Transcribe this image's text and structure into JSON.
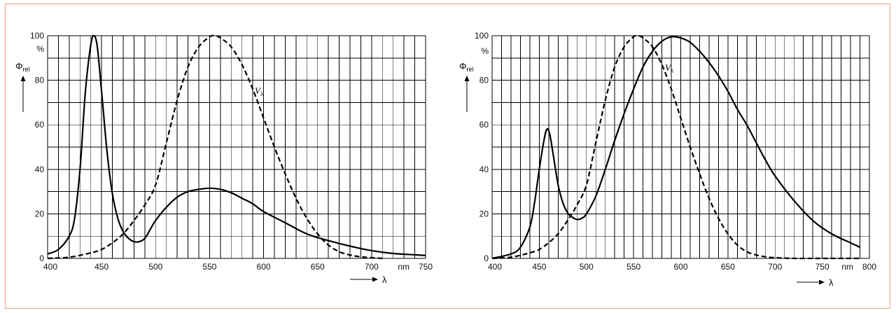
{
  "chart_data": [
    {
      "type": "line",
      "xlim": [
        400,
        750
      ],
      "ylim": [
        0,
        100
      ],
      "x_ticks": [
        "400",
        "450",
        "500",
        "550",
        "600",
        "650",
        "700",
        "750"
      ],
      "x_unit": "nm",
      "x_symbol": "λ",
      "y_ticks": [
        "0",
        "20",
        "40",
        "60",
        "80",
        "100"
      ],
      "y_unit": "%",
      "y_symbol": "Φ",
      "y_symbol_sub": "rel",
      "grid": true,
      "series": [
        {
          "style": "solid",
          "x": [
            400,
            410,
            420,
            425,
            430,
            435,
            440,
            443,
            446,
            450,
            455,
            460,
            465,
            470,
            475,
            480,
            485,
            490,
            495,
            500,
            510,
            520,
            530,
            540,
            550,
            560,
            570,
            580,
            590,
            600,
            620,
            640,
            660,
            680,
            700,
            720,
            740,
            750
          ],
          "y": [
            2,
            4,
            10,
            18,
            40,
            75,
            96,
            100,
            95,
            75,
            48,
            29,
            18,
            12,
            9,
            7.5,
            7.5,
            9,
            13,
            17,
            23,
            27.5,
            30,
            31,
            31.5,
            31,
            29.5,
            27,
            24.5,
            21,
            16,
            11,
            8,
            5.5,
            3.5,
            2.2,
            1.6,
            1.3
          ]
        },
        {
          "style": "dashed",
          "name": "V",
          "name_sub": "λ",
          "x": [
            400,
            420,
            440,
            450,
            460,
            470,
            480,
            490,
            500,
            510,
            520,
            530,
            540,
            550,
            555,
            560,
            570,
            580,
            590,
            600,
            610,
            620,
            630,
            640,
            650,
            660,
            670,
            680,
            690,
            700,
            710
          ],
          "y": [
            0,
            0.5,
            2.5,
            4,
            7,
            11,
            17,
            24,
            33,
            52,
            71,
            86,
            95,
            99.5,
            100,
            99,
            95,
            87,
            76,
            63,
            50,
            38,
            27,
            18,
            11,
            6,
            3,
            1.5,
            0.7,
            0.3,
            0
          ]
        }
      ]
    },
    {
      "type": "line",
      "xlim": [
        400,
        800
      ],
      "ylim": [
        0,
        100
      ],
      "x_ticks": [
        "400",
        "450",
        "500",
        "550",
        "600",
        "650",
        "700",
        "750",
        "800"
      ],
      "x_unit": "nm",
      "x_symbol": "λ",
      "y_ticks": [
        "0",
        "20",
        "40",
        "60",
        "80",
        "100"
      ],
      "y_unit": "%",
      "y_symbol": "Φ",
      "y_symbol_sub": "rel",
      "grid": true,
      "series": [
        {
          "style": "solid",
          "x": [
            400,
            420,
            430,
            440,
            445,
            450,
            455,
            458,
            461,
            465,
            470,
            475,
            480,
            485,
            490,
            495,
            500,
            510,
            520,
            530,
            540,
            550,
            560,
            570,
            580,
            590,
            600,
            610,
            620,
            630,
            640,
            650,
            660,
            670,
            680,
            690,
            700,
            720,
            740,
            760,
            780,
            790
          ],
          "y": [
            0,
            2,
            5,
            14,
            25,
            40,
            53,
            58,
            56,
            46,
            33,
            25,
            20.5,
            18.5,
            17.5,
            18,
            20,
            28,
            40,
            53,
            65,
            76,
            86,
            93,
            97.5,
            99.5,
            99,
            97,
            93,
            88,
            82,
            75,
            67,
            60,
            52,
            44,
            37,
            26,
            17,
            11,
            7,
            5
          ]
        },
        {
          "style": "dashed",
          "name": "V",
          "name_sub": "λ",
          "x": [
            400,
            420,
            440,
            450,
            460,
            470,
            480,
            490,
            500,
            510,
            520,
            530,
            540,
            550,
            555,
            560,
            570,
            580,
            590,
            600,
            610,
            620,
            630,
            640,
            650,
            660,
            670,
            680,
            690,
            700,
            720,
            750,
            790
          ],
          "y": [
            0,
            0.5,
            2.5,
            4,
            7,
            11,
            17,
            24,
            33,
            52,
            71,
            86,
            95,
            99.5,
            100,
            99,
            95,
            87,
            76,
            63,
            50,
            38,
            27,
            18,
            11,
            6,
            3,
            1.5,
            0.7,
            0.3,
            0,
            0,
            0
          ]
        }
      ]
    }
  ]
}
